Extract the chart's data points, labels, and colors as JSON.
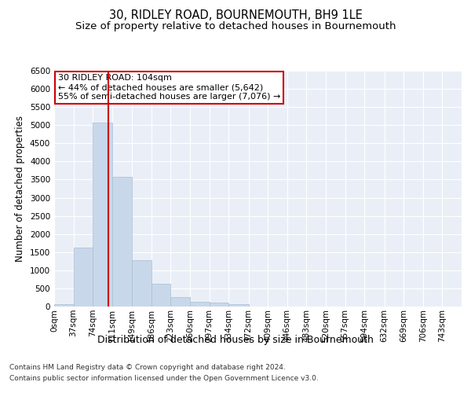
{
  "title": "30, RIDLEY ROAD, BOURNEMOUTH, BH9 1LE",
  "subtitle": "Size of property relative to detached houses in Bournemouth",
  "xlabel": "Distribution of detached houses by size in Bournemouth",
  "ylabel": "Number of detached properties",
  "footer_line1": "Contains HM Land Registry data © Crown copyright and database right 2024.",
  "footer_line2": "Contains public sector information licensed under the Open Government Licence v3.0.",
  "annotation_line1": "30 RIDLEY ROAD: 104sqm",
  "annotation_line2": "← 44% of detached houses are smaller (5,642)",
  "annotation_line3": "55% of semi-detached houses are larger (7,076) →",
  "property_size": 104,
  "bar_color": "#c8d8ea",
  "bar_edgecolor": "#a8bfd4",
  "vline_color": "#cc0000",
  "vline_x": 104,
  "categories": [
    "0sqm",
    "37sqm",
    "74sqm",
    "111sqm",
    "149sqm",
    "186sqm",
    "223sqm",
    "260sqm",
    "297sqm",
    "334sqm",
    "372sqm",
    "409sqm",
    "446sqm",
    "483sqm",
    "520sqm",
    "557sqm",
    "594sqm",
    "632sqm",
    "669sqm",
    "706sqm",
    "743sqm"
  ],
  "bin_edges": [
    0,
    37,
    74,
    111,
    149,
    186,
    223,
    260,
    297,
    334,
    372,
    409,
    446,
    483,
    520,
    557,
    594,
    632,
    669,
    706,
    743,
    780
  ],
  "bar_heights": [
    55,
    1620,
    5060,
    3580,
    1280,
    620,
    270,
    130,
    100,
    60,
    10,
    0,
    0,
    0,
    0,
    0,
    0,
    0,
    0,
    0,
    0
  ],
  "ylim": [
    0,
    6500
  ],
  "yticks": [
    0,
    500,
    1000,
    1500,
    2000,
    2500,
    3000,
    3500,
    4000,
    4500,
    5000,
    5500,
    6000,
    6500
  ],
  "background_color": "#ffffff",
  "plot_bg_color": "#eaeff7",
  "grid_color": "#ffffff",
  "title_fontsize": 10.5,
  "subtitle_fontsize": 9.5,
  "xlabel_fontsize": 9,
  "ylabel_fontsize": 8.5,
  "tick_fontsize": 7.5,
  "footer_fontsize": 6.5,
  "annotation_fontsize": 8,
  "annotation_box_color": "#ffffff",
  "annotation_box_edgecolor": "#cc0000"
}
